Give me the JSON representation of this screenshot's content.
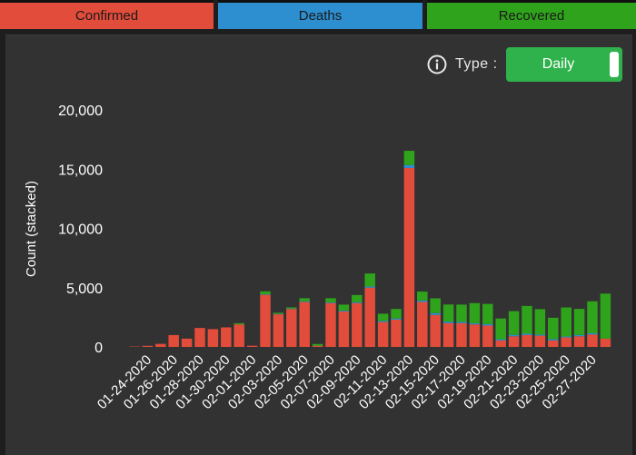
{
  "tabs": [
    {
      "label": "Confirmed",
      "color": "#e24c3b"
    },
    {
      "label": "Deaths",
      "color": "#2d8ed0"
    },
    {
      "label": "Recovered",
      "color": "#2fa31b"
    }
  ],
  "controls": {
    "type_label": "Type :",
    "type_value": "Daily",
    "info_icon": "info-icon"
  },
  "chart_data": {
    "type": "bar",
    "stacked": true,
    "ylabel": "Count (stacked)",
    "ylim": [
      0,
      20000
    ],
    "yticks": [
      0,
      5000,
      10000,
      15000,
      20000
    ],
    "ytick_labels": [
      "0",
      "5,000",
      "10,000",
      "15,000",
      "20,000"
    ],
    "categories": [
      "01-23-2020",
      "01-24-2020",
      "01-25-2020",
      "01-26-2020",
      "01-27-2020",
      "01-28-2020",
      "01-29-2020",
      "01-30-2020",
      "01-31-2020",
      "02-01-2020",
      "02-02-2020",
      "02-03-2020",
      "02-04-2020",
      "02-05-2020",
      "02-06-2020",
      "02-07-2020",
      "02-08-2020",
      "02-09-2020",
      "02-10-2020",
      "02-11-2020",
      "02-12-2020",
      "02-13-2020",
      "02-14-2020",
      "02-15-2020",
      "02-16-2020",
      "02-17-2020",
      "02-18-2020",
      "02-19-2020",
      "02-20-2020",
      "02-21-2020",
      "02-22-2020",
      "02-23-2020",
      "02-24-2020",
      "02-25-2020",
      "02-26-2020",
      "02-27-2020",
      "02-28-2020"
    ],
    "xtick_labels": [
      "01-24-2020",
      "01-26-2020",
      "01-28-2020",
      "01-30-2020",
      "02-01-2020",
      "02-03-2020",
      "02-05-2020",
      "02-07-2020",
      "02-09-2020",
      "02-11-2020",
      "02-13-2020",
      "02-15-2020",
      "02-17-2020",
      "02-19-2020",
      "02-21-2020",
      "02-23-2020",
      "02-25-2020",
      "02-27-2020"
    ],
    "series": [
      {
        "name": "Confirmed",
        "color": "#e24c3b",
        "values": [
          30,
          90,
          260,
          1000,
          700,
          1600,
          1500,
          1650,
          1900,
          100,
          4400,
          2750,
          3200,
          3800,
          100,
          3700,
          3000,
          3700,
          5000,
          2100,
          2300,
          15100,
          3800,
          2700,
          2000,
          2000,
          1900,
          1800,
          550,
          900,
          1000,
          950,
          550,
          800,
          900,
          1050,
          700
        ]
      },
      {
        "name": "Deaths",
        "color": "#2d8ed0",
        "values": [
          0,
          0,
          0,
          0,
          0,
          0,
          0,
          0,
          0,
          0,
          40,
          30,
          40,
          60,
          0,
          60,
          70,
          80,
          100,
          100,
          100,
          250,
          120,
          150,
          130,
          120,
          100,
          130,
          100,
          120,
          110,
          90,
          110,
          80,
          110,
          100,
          0
        ]
      },
      {
        "name": "Recovered",
        "color": "#2fa31b",
        "values": [
          0,
          0,
          0,
          0,
          0,
          0,
          0,
          0,
          100,
          0,
          250,
          100,
          100,
          250,
          150,
          350,
          500,
          600,
          1100,
          600,
          800,
          1200,
          750,
          1250,
          1450,
          1450,
          1700,
          1700,
          1750,
          2000,
          2350,
          2150,
          1800,
          2450,
          2200,
          2700,
          3800
        ]
      }
    ]
  }
}
